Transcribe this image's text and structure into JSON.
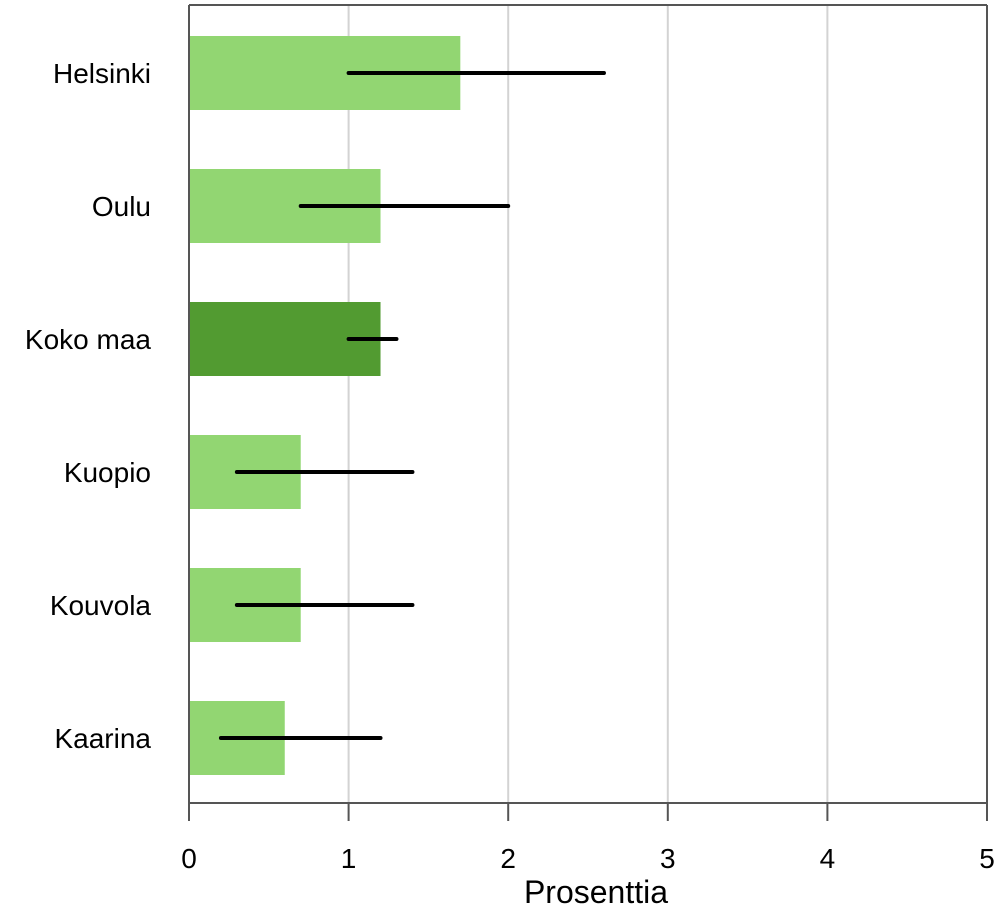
{
  "chart_data": {
    "type": "bar",
    "orientation": "horizontal",
    "categories": [
      "Helsinki",
      "Oulu",
      "Koko maa",
      "Kuopio",
      "Kouvola",
      "Kaarina"
    ],
    "values": [
      1.7,
      1.2,
      1.2,
      0.7,
      0.7,
      0.6
    ],
    "error_low": [
      1.0,
      0.7,
      1.0,
      0.3,
      0.3,
      0.2
    ],
    "error_high": [
      2.6,
      2.0,
      1.3,
      1.4,
      1.4,
      1.2
    ],
    "highlight_category": "Koko maa",
    "xlabel": "Prosenttia",
    "ylabel": "",
    "title": "",
    "xlim": [
      0,
      5
    ],
    "x_ticks": [
      "0",
      "1",
      "2",
      "3",
      "4",
      "5"
    ],
    "grid": "vertical",
    "colors": {
      "bar": "#92d672",
      "bar_highlight": "#529b31",
      "error": "#000000",
      "grid": "#d3d3d3",
      "axis": "#555555"
    }
  }
}
